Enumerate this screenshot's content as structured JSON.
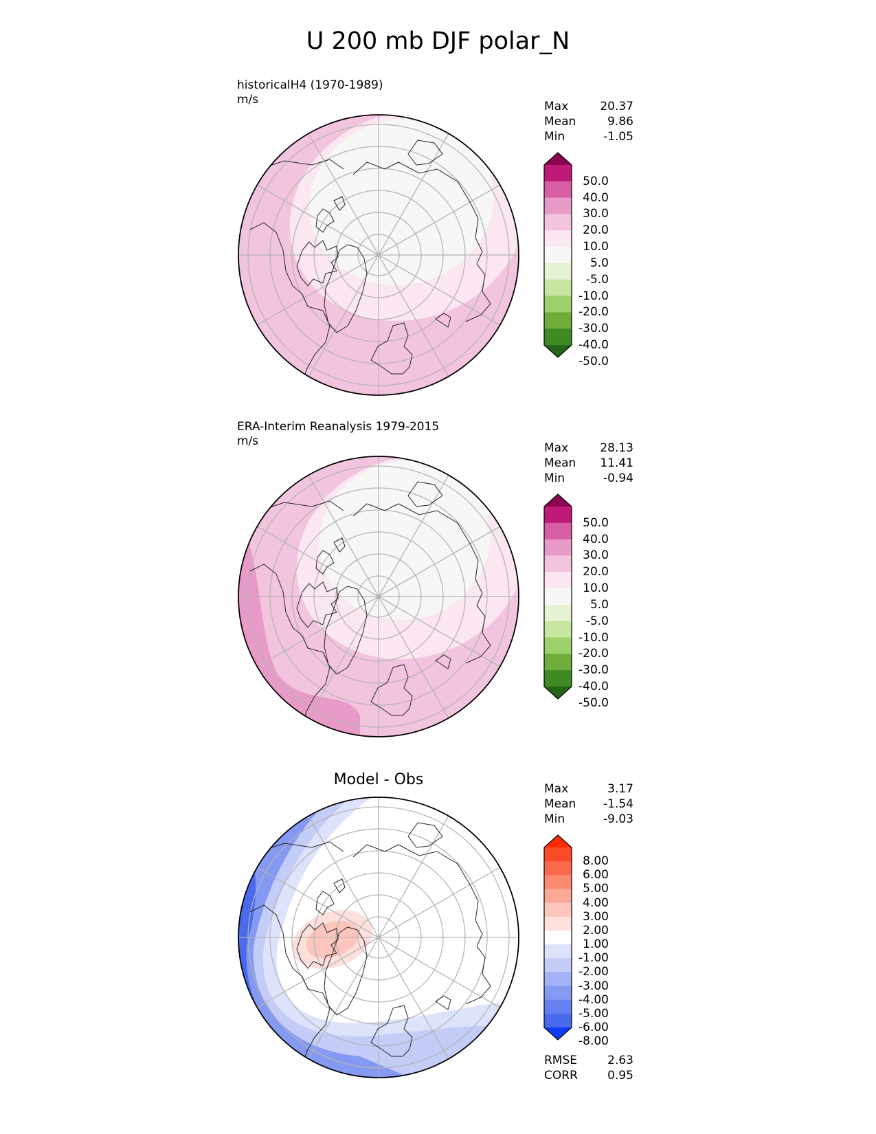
{
  "figure": {
    "title": "U 200 mb DJF polar_N"
  },
  "colors": {
    "pink": [
      "#fbe7f1",
      "#f3c4de",
      "#e99bc8",
      "#d95fa4",
      "#bf1a7a",
      "#8a0651"
    ],
    "neutral": "#f7f7f6",
    "green": [
      "#e6f3d3",
      "#c8e6a0",
      "#9dd16c",
      "#6ead3a",
      "#3f8a22",
      "#246318"
    ],
    "blue": [
      "#dde3fb",
      "#c3cdf8",
      "#a4b3f5",
      "#8499f2",
      "#6581ef",
      "#4a6aee",
      "#2f55ee",
      "#0d3af2"
    ],
    "red": [
      "#fde0dc",
      "#fcc6bc",
      "#fba897",
      "#fb8a70",
      "#fb6a4a",
      "#fb4a26",
      "#fc2a06"
    ],
    "white": "#ffffff"
  },
  "panels": [
    {
      "title_lines": [
        "historicalH4 (1970-1989)",
        "m/s"
      ],
      "center_title": "",
      "stats": [
        {
          "label": "Max",
          "value": "20.37"
        },
        {
          "label": "Mean",
          "value": "9.86"
        },
        {
          "label": "Min",
          "value": "-1.05"
        }
      ],
      "colorbar_labels": [
        "50.0",
        "40.0",
        "30.0",
        "20.0",
        "10.0",
        "5.0",
        "-5.0",
        "-10.0",
        "-20.0",
        "-30.0",
        "-40.0",
        "-50.0"
      ],
      "extra_stats": []
    },
    {
      "title_lines": [
        "ERA-Interim Reanalysis 1979-2015",
        "m/s"
      ],
      "center_title": "",
      "stats": [
        {
          "label": "Max",
          "value": "28.13"
        },
        {
          "label": "Mean",
          "value": "11.41"
        },
        {
          "label": "Min",
          "value": "-0.94"
        }
      ],
      "colorbar_labels": [
        "50.0",
        "40.0",
        "30.0",
        "20.0",
        "10.0",
        "5.0",
        "-5.0",
        "-10.0",
        "-20.0",
        "-30.0",
        "-40.0",
        "-50.0"
      ],
      "extra_stats": []
    },
    {
      "title_lines": [],
      "center_title": "Model - Obs",
      "stats": [
        {
          "label": "Max",
          "value": "3.17"
        },
        {
          "label": "Mean",
          "value": "-1.54"
        },
        {
          "label": "Min",
          "value": "-9.03"
        }
      ],
      "colorbar_labels": [
        "8.00",
        "6.00",
        "5.00",
        "4.00",
        "3.00",
        "2.00",
        "1.00",
        "-1.00",
        "-2.00",
        "-3.00",
        "-4.00",
        "-5.00",
        "-6.00",
        "-8.00"
      ],
      "extra_stats": [
        {
          "label": "RMSE",
          "value": "2.63"
        },
        {
          "label": "CORR",
          "value": "0.95"
        }
      ]
    }
  ]
}
